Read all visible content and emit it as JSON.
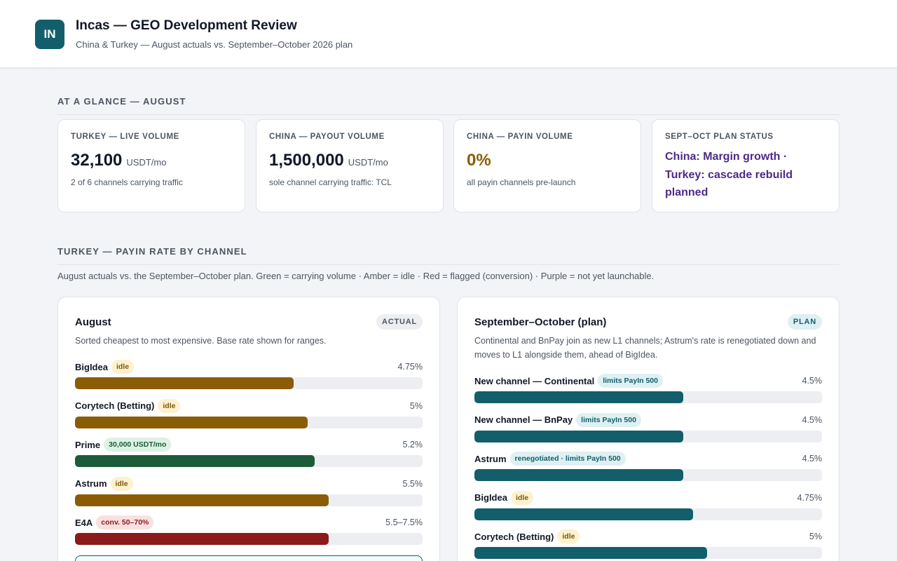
{
  "header": {
    "logo_text": "IN",
    "title": "Incas — GEO Development Review",
    "subtitle": "China & Turkey — August actuals vs. September–October 2026 plan"
  },
  "glance": {
    "title": "AT A GLANCE — AUGUST",
    "cards": [
      {
        "label": "TURKEY — LIVE VOLUME",
        "value": "32,100",
        "unit": "USDT/mo",
        "note": "2 of 6 channels carrying traffic",
        "value_color": "#111827"
      },
      {
        "label": "CHINA — PAYOUT VOLUME",
        "value": "1,500,000",
        "unit": "USDT/mo",
        "note": "sole channel carrying traffic: TCL",
        "value_color": "#111827"
      },
      {
        "label": "CHINA — PAYIN VOLUME",
        "value": "0%",
        "unit": "",
        "note": "all payin channels pre-launch",
        "value_color": "#8a5c05"
      },
      {
        "label": "SEPT–OCT PLAN STATUS",
        "status": "China: Margin growth · Turkey: cascade rebuild planned"
      }
    ]
  },
  "turkey": {
    "title": "TURKEY — PAYIN RATE BY CHANNEL",
    "description": "August actuals vs. the September–October plan. Green = carrying volume · Amber = idle · Red = flagged (conversion) · Purple = not yet launchable.",
    "august": {
      "title": "August",
      "badge": "ACTUAL",
      "subtitle": "Sorted cheapest to most expensive. Base rate shown for ranges.",
      "rows": [
        {
          "name": "BigIdea",
          "tag": "idle",
          "tag_kind": "idle",
          "rate": "4.75%",
          "fill": 0.63,
          "color": "amber"
        },
        {
          "name": "Corytech (Betting)",
          "tag": "idle",
          "tag_kind": "idle",
          "rate": "5%",
          "fill": 0.67,
          "color": "amber"
        },
        {
          "name": "Prime",
          "tag": "30,000 USDT/mo",
          "tag_kind": "green",
          "rate": "5.2%",
          "fill": 0.69,
          "color": "green"
        },
        {
          "name": "Astrum",
          "tag": "idle",
          "tag_kind": "idle",
          "rate": "5.5%",
          "fill": 0.73,
          "color": "amber"
        },
        {
          "name": "E4A",
          "tag": "conv. 50–70%",
          "tag_kind": "red",
          "rate": "5.5–7.5%",
          "fill": 0.73,
          "color": "red"
        }
      ]
    },
    "plan": {
      "title": "September–October (plan)",
      "badge": "PLAN",
      "subtitle": "Continental and BnPay join as new L1 channels; Astrum's rate is renegotiated down and moves to L1 alongside them, ahead of BigIdea.",
      "rows": [
        {
          "name": "New channel — Continental",
          "tag": "limits PayIn 500",
          "tag_kind": "teal",
          "rate": "4.5%",
          "fill": 0.6,
          "color": "teal"
        },
        {
          "name": "New channel — BnPay",
          "tag": "limits PayIn 500",
          "tag_kind": "teal",
          "rate": "4.5%",
          "fill": 0.6,
          "color": "teal"
        },
        {
          "name": "Astrum",
          "tag": "renegotiated · limits PayIn 500",
          "tag_kind": "teal",
          "rate": "4.5%",
          "fill": 0.6,
          "color": "teal"
        },
        {
          "name": "BigIdea",
          "tag": "idle",
          "tag_kind": "idle",
          "rate": "4.75%",
          "fill": 0.63,
          "color": "teal"
        },
        {
          "name": "Corytech (Betting)",
          "tag": "idle",
          "tag_kind": "idle",
          "rate": "5%",
          "fill": 0.67,
          "color": "teal"
        }
      ]
    }
  }
}
